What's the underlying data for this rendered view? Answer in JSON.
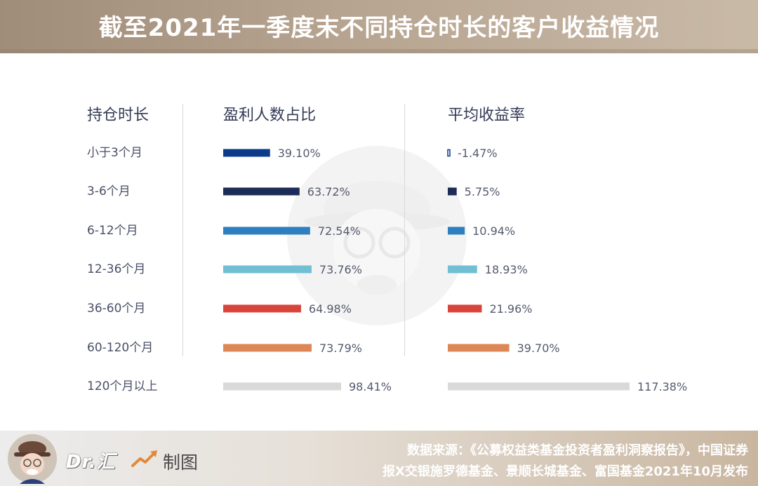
{
  "title": "截至2021年一季度末不同持仓时长的客户收益情况",
  "columns": {
    "duration": "持仓时长",
    "profit_ratio": "盈利人数占比",
    "avg_return": "平均收益率"
  },
  "footer": {
    "brand": "Dr.汇",
    "made": "制图",
    "source_line1": "数据来源：《公募权益类基金投资者盈利洞察报告》，中国证券",
    "source_line2": "报X交银施罗德基金、景顺长城基金、富国基金2021年10月发布"
  },
  "chart_data": {
    "type": "bar",
    "orientation": "horizontal",
    "categories": [
      "小于3个月",
      "3-6个月",
      "6-12个月",
      "12-36个月",
      "36-60个月",
      "60-120个月",
      "120个月以上"
    ],
    "series": [
      {
        "name": "盈利人数占比",
        "values": [
          39.1,
          63.72,
          72.54,
          73.76,
          64.98,
          73.79,
          98.41
        ],
        "labels": [
          "39.10%",
          "63.72%",
          "72.54%",
          "73.76%",
          "64.98%",
          "73.79%",
          "98.41%"
        ]
      },
      {
        "name": "平均收益率",
        "values": [
          -1.47,
          5.75,
          10.94,
          18.93,
          21.96,
          39.7,
          117.38
        ],
        "labels": [
          "-1.47%",
          "5.75%",
          "10.94%",
          "18.93%",
          "21.96%",
          "39.70%",
          "117.38%"
        ]
      }
    ],
    "colors": [
      "#0d3b8c",
      "#1c2b57",
      "#2f7fc0",
      "#71bfd3",
      "#d9443a",
      "#dd8757",
      "#d9d9d9"
    ],
    "unit": "%",
    "grid": false,
    "legend": "none"
  }
}
